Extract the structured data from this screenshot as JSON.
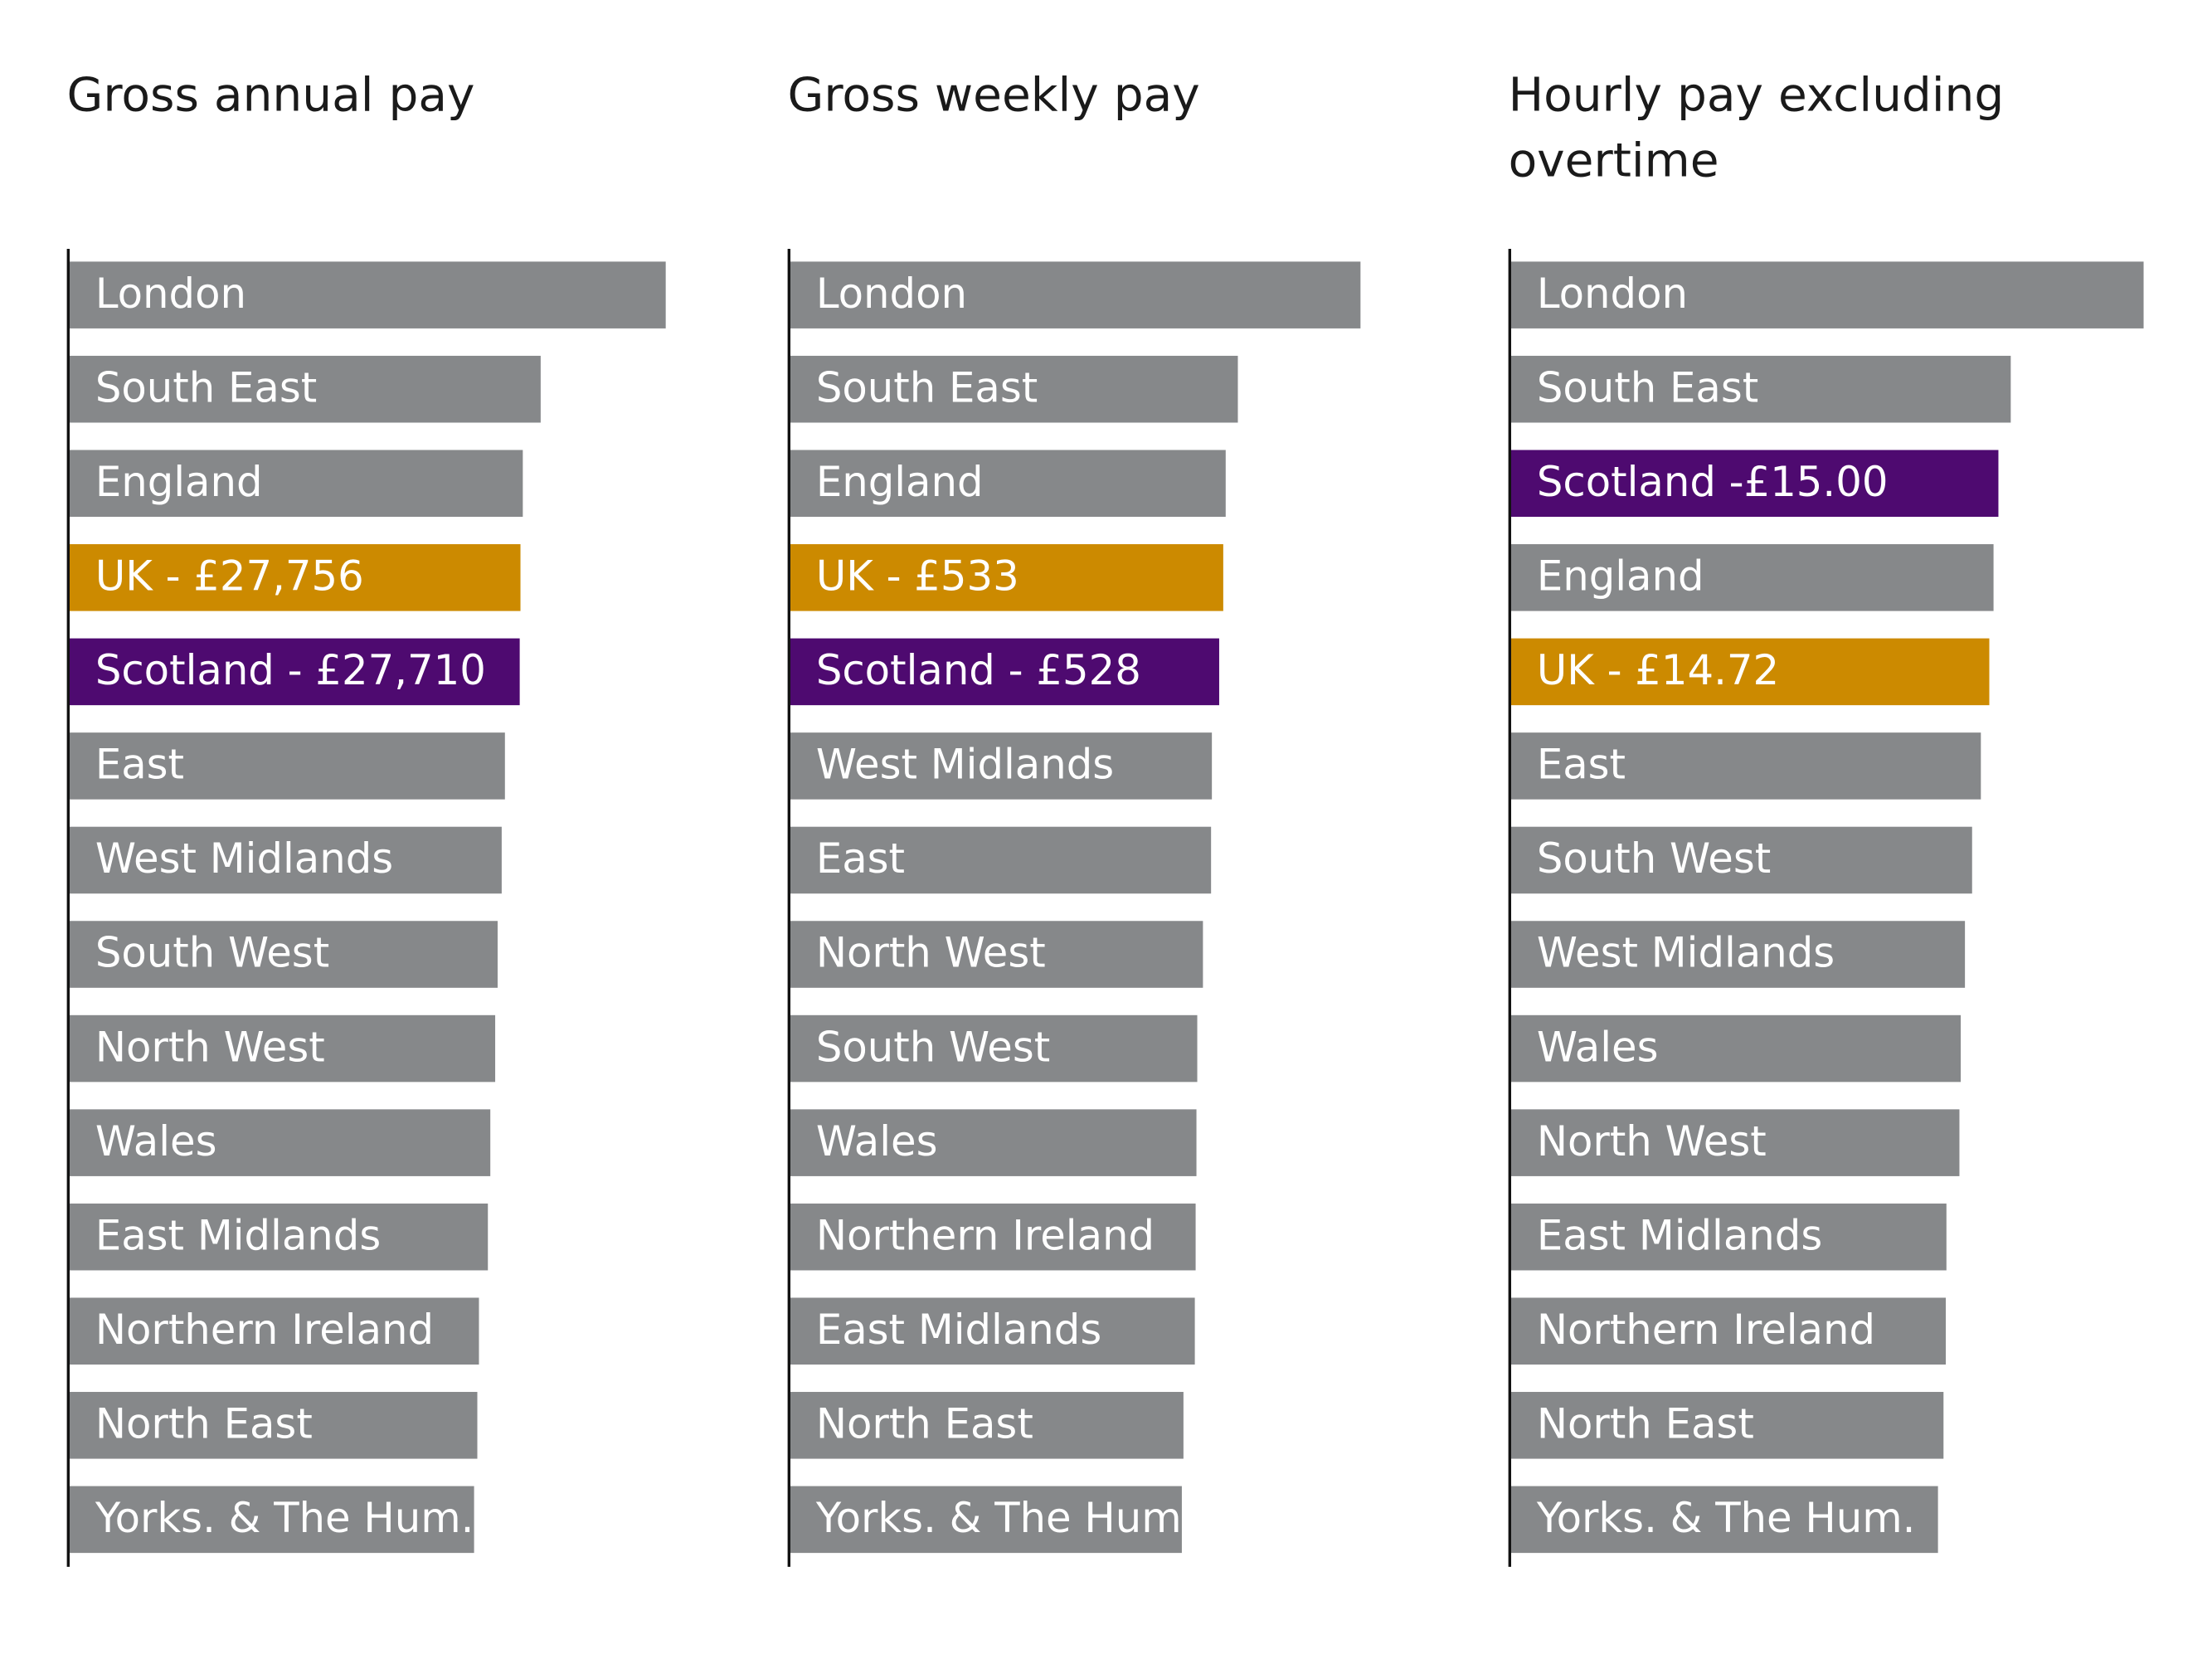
{
  "chart_data": [
    {
      "type": "bar",
      "orientation": "horizontal",
      "title": "Gross annual pay",
      "categories": [
        "London",
        "South East",
        "England",
        "UK - £27,756",
        "Scotland  - £27,710",
        "East",
        "West Midlands",
        "South West",
        "North West",
        "Wales",
        "East Midlands",
        "Northern Ireland",
        "North East",
        "Yorks. & The Hum."
      ],
      "values": [
        36700,
        29000,
        27900,
        27756,
        27710,
        26800,
        26600,
        26350,
        26200,
        25900,
        25750,
        25200,
        25100,
        24900
      ],
      "colors": [
        "#86888a",
        "#86888a",
        "#86888a",
        "#cc8a00",
        "#4e0a70",
        "#86888a",
        "#86888a",
        "#86888a",
        "#86888a",
        "#86888a",
        "#86888a",
        "#86888a",
        "#86888a",
        "#86888a"
      ],
      "xlim": [
        0,
        40000
      ]
    },
    {
      "type": "bar",
      "orientation": "horizontal",
      "title": "Gross weekly pay",
      "categories": [
        "London",
        "South East",
        "England",
        "UK - £533",
        "Scotland - £528",
        "West Midlands",
        "East",
        "North West",
        "South West",
        "Wales",
        "Northern Ireland",
        "East Midlands",
        "North East",
        "Yorks. & The Hum."
      ],
      "values": [
        702,
        551,
        536,
        533,
        528,
        519,
        518,
        508,
        501,
        500,
        499,
        498,
        484,
        482
      ],
      "colors": [
        "#86888a",
        "#86888a",
        "#86888a",
        "#cc8a00",
        "#4e0a70",
        "#86888a",
        "#86888a",
        "#86888a",
        "#86888a",
        "#86888a",
        "#86888a",
        "#86888a",
        "#86888a",
        "#86888a"
      ],
      "xlim": [
        0,
        800
      ]
    },
    {
      "type": "bar",
      "orientation": "horizontal",
      "title": "Hourly pay excluding overtime",
      "categories": [
        "London",
        "South East",
        "Scotland -£15.00",
        "England",
        "UK - £14.72",
        "East",
        "South West",
        "West Midlands",
        "Wales",
        "North West",
        "East Midlands",
        "Northern Ireland",
        "North East",
        "Yorks. & The Hum."
      ],
      "values": [
        19.47,
        15.38,
        15.0,
        14.85,
        14.72,
        14.46,
        14.19,
        13.97,
        13.84,
        13.8,
        13.4,
        13.38,
        13.31,
        13.14
      ],
      "colors": [
        "#86888a",
        "#86888a",
        "#4e0a70",
        "#86888a",
        "#cc8a00",
        "#86888a",
        "#86888a",
        "#86888a",
        "#86888a",
        "#86888a",
        "#86888a",
        "#86888a",
        "#86888a",
        "#86888a"
      ],
      "xlim": [
        0,
        20
      ]
    }
  ]
}
